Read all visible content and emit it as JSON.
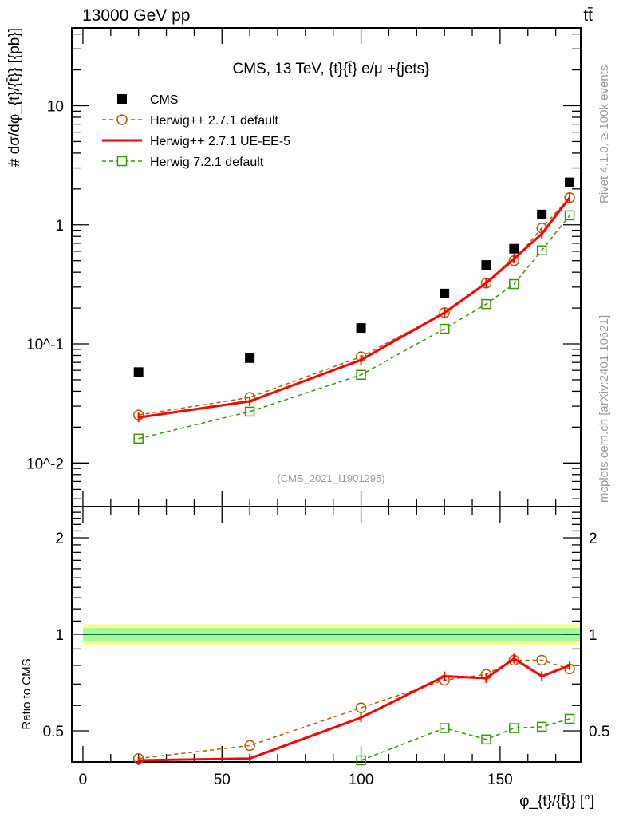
{
  "header": {
    "beam": "13000 GeV pp",
    "process": "tt̄"
  },
  "side": {
    "rivet": "Rivet 4.1.0, ≥ 100k events",
    "site": "mcplots.cern.ch [arXiv:2401.10621]"
  },
  "chart_data": {
    "type": "line",
    "title": "CMS, 13 TeV, {t}{t̄} e/μ +{jets}",
    "watermark": "(CMS_2021_I1901295)",
    "ylabel": "# dσ/dφ_{t}/{t̄}} [{pb}]",
    "ylabel_parts": {
      "hash": "#",
      "num": "dσ",
      "den": "dφ",
      "sub": "{t",
      "slash": "/{t̄",
      "unit": "}} [{pb}]"
    },
    "xlabel": "φ_{t}/{t̄}} [°]",
    "xlabel_parts": {
      "phi": "φ",
      "sub": "{t",
      "rest": "/{t̄}} [°]"
    },
    "ratio_ylabel": "Ratio to CMS",
    "xlim": [
      -4,
      179
    ],
    "ylim": [
      0.0043,
      45
    ],
    "yscale": "log",
    "ratio_ylim": [
      0.4,
      2.5
    ],
    "x_ticks": [
      "0",
      "50",
      "100",
      "150"
    ],
    "y_ticks": [
      "10^-2",
      "10^-1",
      "1",
      "10"
    ],
    "ratio_ticks": [
      "0.5",
      "1",
      "2"
    ],
    "x": [
      20,
      60,
      100,
      130,
      145,
      155,
      165,
      175
    ],
    "series": [
      {
        "name": "CMS",
        "color": "#000000",
        "style": "marker-square",
        "values": [
          0.058,
          0.076,
          0.136,
          0.265,
          0.46,
          0.63,
          1.22,
          2.27
        ]
      },
      {
        "name": "Herwig++ 2.7.1 default",
        "color": "#b35c00",
        "style": "dashed-circle",
        "values": [
          0.0253,
          0.0355,
          0.078,
          0.183,
          0.324,
          0.5,
          0.94,
          1.69
        ]
      },
      {
        "name": "Herwig++ 2.7.1 UE-EE-5",
        "color": "#ff0000",
        "style": "solid",
        "values": [
          0.0241,
          0.033,
          0.0734,
          0.183,
          0.324,
          0.52,
          0.84,
          1.69
        ]
      },
      {
        "name": "Herwig 7.2.1 default",
        "color": "#339900",
        "style": "dashed-square",
        "values": [
          0.016,
          0.027,
          0.055,
          0.134,
          0.216,
          0.318,
          0.61,
          1.2
        ]
      }
    ],
    "ratio_series": [
      {
        "name": "Herwig++ 2.7.1 default",
        "values": [
          0.41,
          0.45,
          0.59,
          0.72,
          0.75,
          0.83,
          0.83,
          0.78
        ]
      },
      {
        "name": "Herwig++ 2.7.1 UE-EE-5",
        "values": [
          0.38,
          0.41,
          0.55,
          0.74,
          0.73,
          0.84,
          0.74,
          0.8
        ]
      },
      {
        "name": "Herwig 7.2.1 default",
        "values": [
          null,
          null,
          0.38,
          0.51,
          0.47,
          0.51,
          0.515,
          0.545
        ]
      }
    ],
    "band_stat": 0.045,
    "band_total": 0.075
  }
}
